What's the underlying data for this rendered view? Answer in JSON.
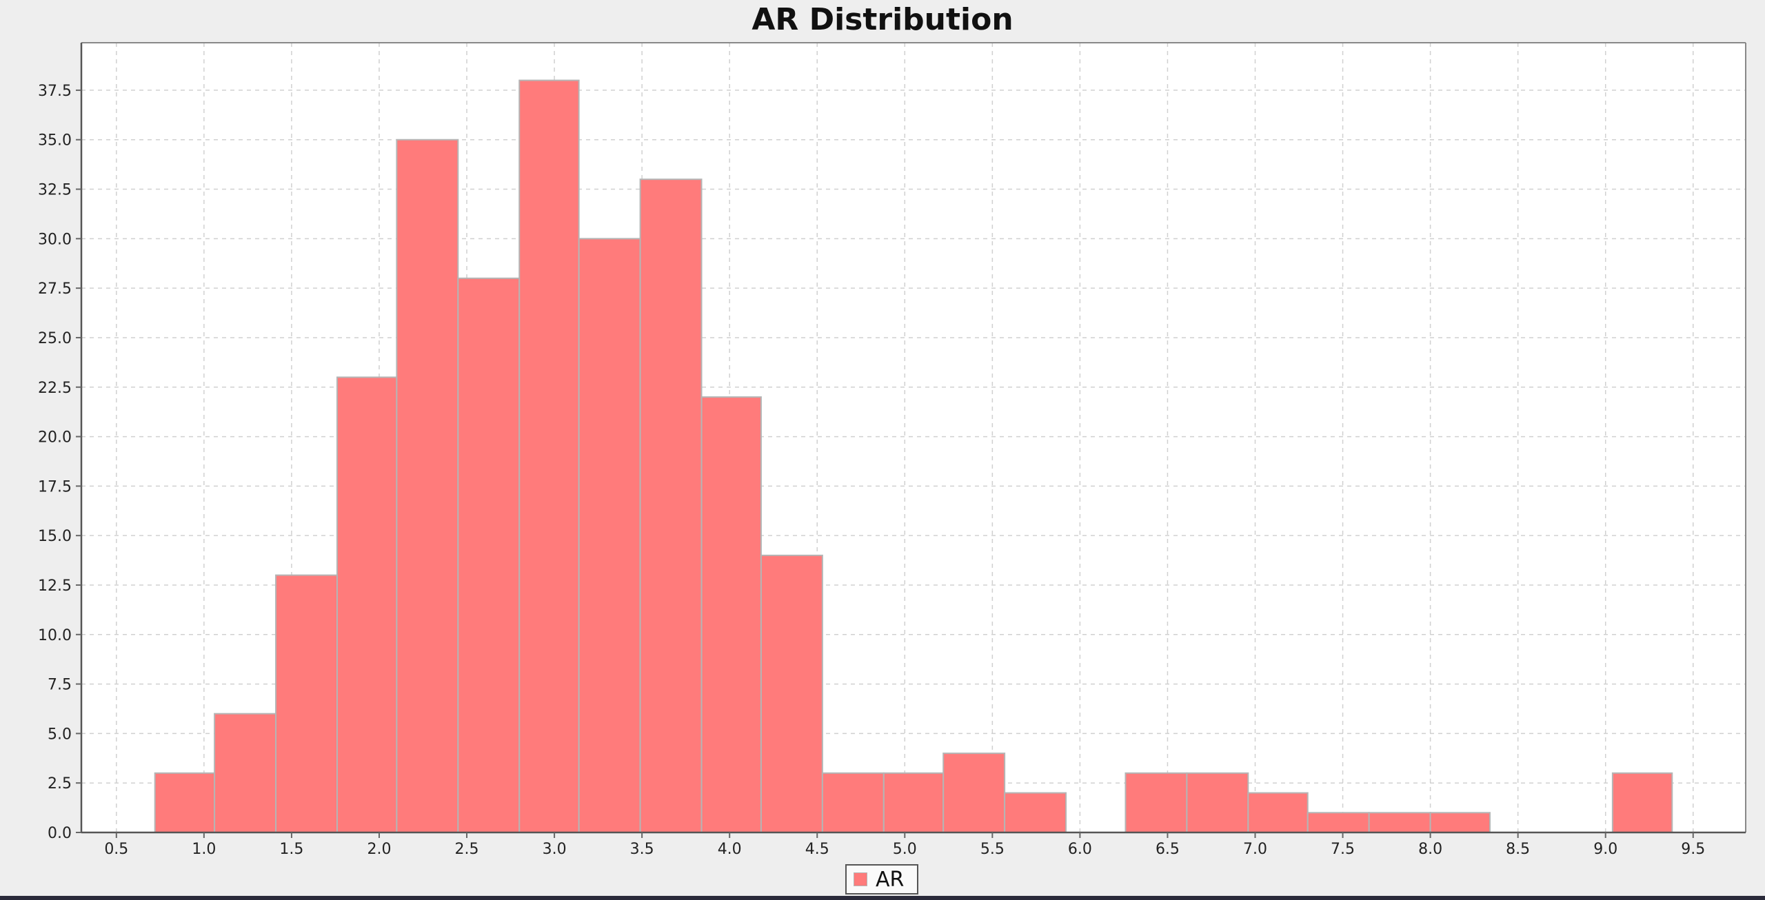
{
  "colors": {
    "bar": "#ff7b7b",
    "bar_stroke": "#b5b5b5",
    "plot_bg": "#ffffff",
    "page_bg": "#eeeeee",
    "grid": "#d0d0d0"
  },
  "chart_data": {
    "type": "bar",
    "title": "AR Distribution",
    "xlabel": "",
    "ylabel": "",
    "xlim": [
      0.3,
      9.8
    ],
    "ylim": [
      0,
      39.9
    ],
    "grid": true,
    "legend_position": "bottom-center",
    "x_ticks": [
      "0.5",
      "1.0",
      "1.5",
      "2.0",
      "2.5",
      "3.0",
      "3.5",
      "4.0",
      "4.5",
      "5.0",
      "5.5",
      "6.0",
      "6.5",
      "7.0",
      "7.5",
      "8.0",
      "8.5",
      "9.0",
      "9.5"
    ],
    "y_ticks": [
      "0.0",
      "2.5",
      "5.0",
      "7.5",
      "10.0",
      "12.5",
      "15.0",
      "17.5",
      "20.0",
      "22.5",
      "25.0",
      "27.5",
      "30.0",
      "32.5",
      "35.0",
      "37.5"
    ],
    "series": [
      {
        "name": "AR",
        "bins": [
          {
            "x0": 0.72,
            "x1": 1.06,
            "value": 3
          },
          {
            "x0": 1.06,
            "x1": 1.41,
            "value": 6
          },
          {
            "x0": 1.41,
            "x1": 1.76,
            "value": 13
          },
          {
            "x0": 1.76,
            "x1": 2.1,
            "value": 23
          },
          {
            "x0": 2.1,
            "x1": 2.45,
            "value": 35
          },
          {
            "x0": 2.45,
            "x1": 2.8,
            "value": 28
          },
          {
            "x0": 2.8,
            "x1": 3.14,
            "value": 38
          },
          {
            "x0": 3.14,
            "x1": 3.49,
            "value": 30
          },
          {
            "x0": 3.49,
            "x1": 3.84,
            "value": 33
          },
          {
            "x0": 3.84,
            "x1": 4.18,
            "value": 22
          },
          {
            "x0": 4.18,
            "x1": 4.53,
            "value": 14
          },
          {
            "x0": 4.53,
            "x1": 4.88,
            "value": 3
          },
          {
            "x0": 4.88,
            "x1": 5.22,
            "value": 3
          },
          {
            "x0": 5.22,
            "x1": 5.57,
            "value": 4
          },
          {
            "x0": 5.57,
            "x1": 5.92,
            "value": 2
          },
          {
            "x0": 5.92,
            "x1": 6.26,
            "value": 0
          },
          {
            "x0": 6.26,
            "x1": 6.61,
            "value": 3
          },
          {
            "x0": 6.61,
            "x1": 6.96,
            "value": 3
          },
          {
            "x0": 6.96,
            "x1": 7.3,
            "value": 2
          },
          {
            "x0": 7.3,
            "x1": 7.65,
            "value": 1
          },
          {
            "x0": 7.65,
            "x1": 8.0,
            "value": 1
          },
          {
            "x0": 8.0,
            "x1": 8.34,
            "value": 1
          },
          {
            "x0": 8.34,
            "x1": 8.69,
            "value": 0
          },
          {
            "x0": 8.69,
            "x1": 9.04,
            "value": 0
          },
          {
            "x0": 9.04,
            "x1": 9.38,
            "value": 3
          }
        ]
      }
    ]
  }
}
